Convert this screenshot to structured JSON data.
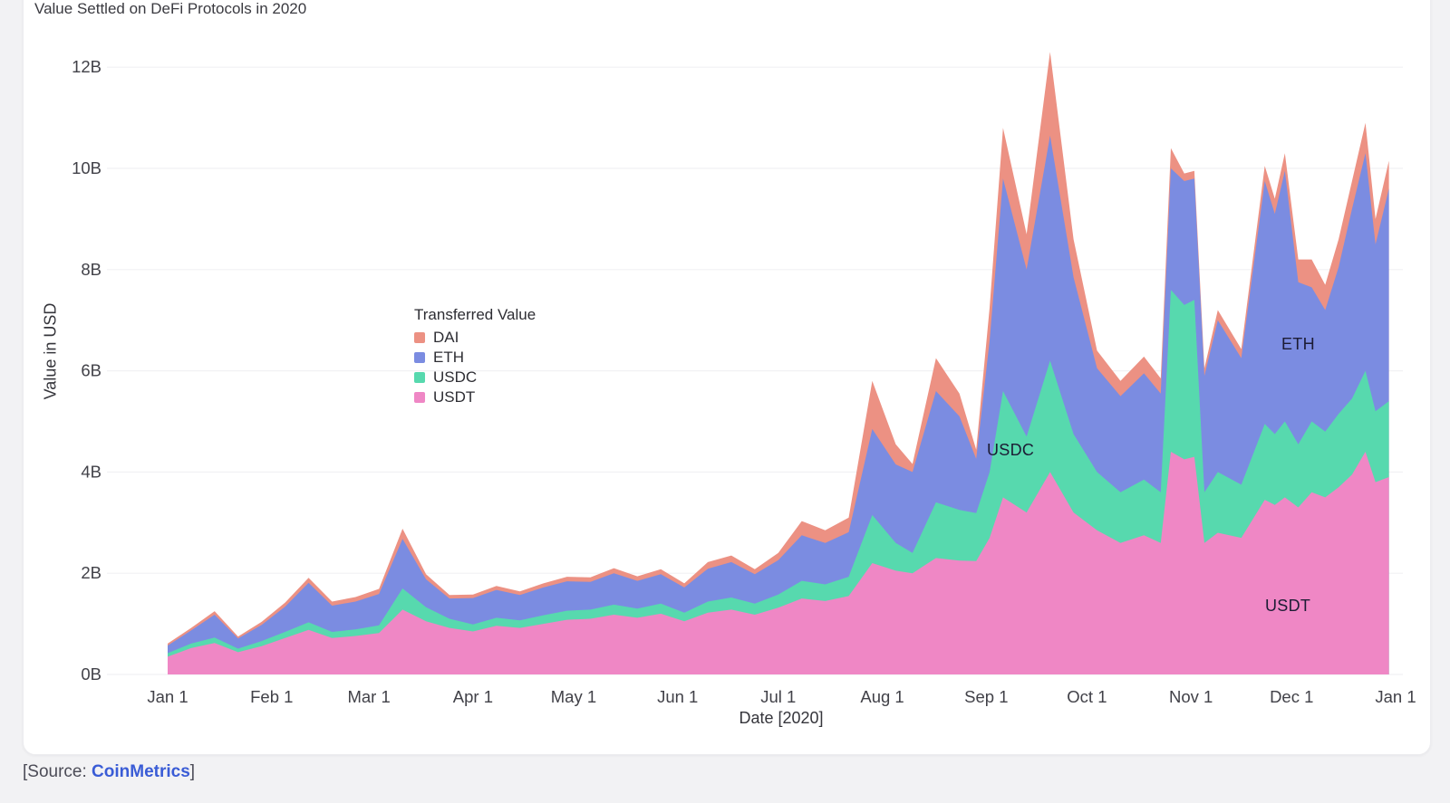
{
  "source": {
    "prefix": "[Source: ",
    "link_text": "CoinMetrics",
    "suffix": "]"
  },
  "chart_data": {
    "type": "area",
    "stacked": true,
    "title": "Value Settled on DeFi Protocols in 2020",
    "xlabel": "Date [2020]",
    "ylabel": "Value in USD",
    "unit": "billions of USD",
    "ylim": [
      0,
      12
    ],
    "grid": true,
    "yticks": [
      {
        "value": 0,
        "label": "0B"
      },
      {
        "value": 2,
        "label": "2B"
      },
      {
        "value": 4,
        "label": "4B"
      },
      {
        "value": 6,
        "label": "6B"
      },
      {
        "value": 8,
        "label": "8B"
      },
      {
        "value": 10,
        "label": "10B"
      },
      {
        "value": 12,
        "label": "12B"
      }
    ],
    "xticks": [
      {
        "day": 0,
        "label": "Jan 1"
      },
      {
        "day": 31,
        "label": "Feb 1"
      },
      {
        "day": 60,
        "label": "Mar 1"
      },
      {
        "day": 91,
        "label": "Apr 1"
      },
      {
        "day": 121,
        "label": "May 1"
      },
      {
        "day": 152,
        "label": "Jun 1"
      },
      {
        "day": 182,
        "label": "Jul 1"
      },
      {
        "day": 213,
        "label": "Aug 1"
      },
      {
        "day": 244,
        "label": "Sep 1"
      },
      {
        "day": 274,
        "label": "Oct 1"
      },
      {
        "day": 305,
        "label": "Nov 1"
      },
      {
        "day": 335,
        "label": "Dec 1"
      },
      {
        "day": 366,
        "label": "Jan 1"
      }
    ],
    "legend": {
      "title": "Transferred Value",
      "position": "inside-left-middle",
      "entries": [
        "DAI",
        "ETH",
        "USDC",
        "USDT"
      ]
    },
    "colors": {
      "DAI": "#EC9183",
      "ETH": "#7B8CE1",
      "USDC": "#57D9AE",
      "USDT": "#EF87C5"
    },
    "annotations": [
      {
        "text": "ETH"
      },
      {
        "text": "USDC"
      },
      {
        "text": "USDT"
      }
    ],
    "x_unit": "day_of_year_2020",
    "x_days": [
      0,
      7,
      14,
      21,
      28,
      35,
      42,
      49,
      56,
      63,
      70,
      77,
      84,
      91,
      98,
      105,
      112,
      119,
      126,
      133,
      140,
      147,
      154,
      161,
      168,
      175,
      182,
      189,
      196,
      203,
      210,
      217,
      222,
      229,
      236,
      241,
      245,
      249,
      256,
      263,
      270,
      277,
      284,
      291,
      296,
      299,
      303,
      306,
      309,
      313,
      320,
      327,
      330,
      333,
      337,
      341,
      345,
      349,
      353,
      357,
      360,
      364
    ],
    "stack_order_bottom_to_top": [
      "USDT",
      "USDC",
      "ETH",
      "DAI"
    ],
    "series": [
      {
        "name": "USDT",
        "values": [
          0.35,
          0.52,
          0.62,
          0.44,
          0.56,
          0.72,
          0.88,
          0.72,
          0.76,
          0.82,
          1.28,
          1.05,
          0.92,
          0.85,
          0.96,
          0.92,
          1.0,
          1.08,
          1.1,
          1.18,
          1.12,
          1.2,
          1.05,
          1.22,
          1.28,
          1.18,
          1.32,
          1.5,
          1.45,
          1.55,
          2.2,
          2.05,
          2.0,
          2.3,
          2.25,
          2.24,
          2.7,
          3.5,
          3.2,
          4.0,
          3.2,
          2.85,
          2.6,
          2.75,
          2.6,
          4.4,
          4.25,
          4.3,
          2.6,
          2.8,
          2.7,
          3.45,
          3.35,
          3.5,
          3.3,
          3.6,
          3.5,
          3.7,
          3.95,
          4.4,
          3.8,
          3.9
        ]
      },
      {
        "name": "USDC",
        "values": [
          0.07,
          0.09,
          0.11,
          0.07,
          0.1,
          0.12,
          0.15,
          0.12,
          0.13,
          0.15,
          0.42,
          0.28,
          0.18,
          0.14,
          0.16,
          0.15,
          0.17,
          0.18,
          0.18,
          0.2,
          0.18,
          0.2,
          0.17,
          0.22,
          0.24,
          0.22,
          0.26,
          0.35,
          0.33,
          0.38,
          0.95,
          0.55,
          0.4,
          1.1,
          1.0,
          0.95,
          1.3,
          2.1,
          1.5,
          2.2,
          1.55,
          1.15,
          1.0,
          1.1,
          1.0,
          3.2,
          3.05,
          3.1,
          1.0,
          1.2,
          1.05,
          1.5,
          1.4,
          1.5,
          1.25,
          1.4,
          1.3,
          1.45,
          1.5,
          1.6,
          1.4,
          1.5
        ]
      },
      {
        "name": "ETH",
        "values": [
          0.15,
          0.26,
          0.45,
          0.2,
          0.32,
          0.5,
          0.78,
          0.52,
          0.55,
          0.62,
          0.98,
          0.55,
          0.4,
          0.52,
          0.55,
          0.5,
          0.55,
          0.58,
          0.55,
          0.62,
          0.55,
          0.58,
          0.5,
          0.65,
          0.7,
          0.58,
          0.68,
          0.9,
          0.82,
          0.88,
          1.7,
          1.55,
          1.6,
          2.2,
          1.85,
          1.07,
          2.6,
          4.2,
          3.3,
          4.45,
          3.1,
          2.05,
          1.9,
          2.1,
          1.95,
          2.4,
          2.45,
          2.4,
          2.3,
          3.0,
          2.5,
          4.8,
          4.35,
          4.95,
          3.2,
          2.65,
          2.4,
          2.9,
          3.75,
          4.3,
          3.3,
          4.2
        ]
      },
      {
        "name": "DAI",
        "values": [
          0.04,
          0.05,
          0.07,
          0.04,
          0.06,
          0.08,
          0.1,
          0.08,
          0.09,
          0.1,
          0.2,
          0.1,
          0.07,
          0.07,
          0.08,
          0.07,
          0.08,
          0.09,
          0.09,
          0.1,
          0.09,
          0.1,
          0.08,
          0.13,
          0.13,
          0.1,
          0.14,
          0.28,
          0.25,
          0.29,
          0.95,
          0.4,
          0.16,
          0.65,
          0.45,
          0.18,
          0.65,
          1.0,
          0.7,
          1.65,
          0.75,
          0.35,
          0.3,
          0.33,
          0.3,
          0.4,
          0.15,
          0.15,
          0.15,
          0.2,
          0.18,
          0.3,
          0.3,
          0.35,
          0.45,
          0.55,
          0.5,
          0.55,
          0.55,
          0.6,
          0.5,
          0.55
        ]
      }
    ]
  }
}
